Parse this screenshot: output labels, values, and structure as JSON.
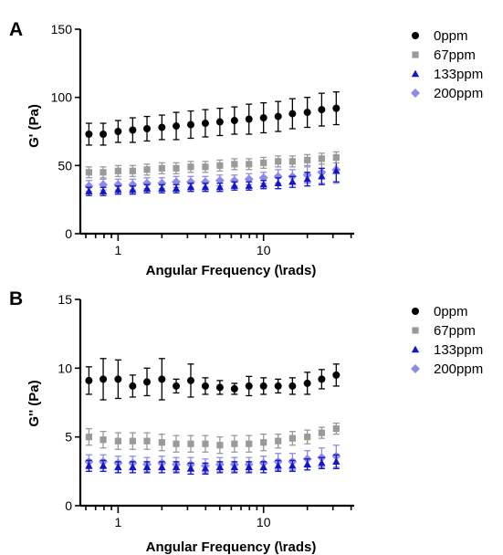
{
  "chart_data": [
    {
      "panel_label": "A",
      "type": "scatter",
      "xlabel": "Angular Frequency (\\rads)",
      "ylabel": "G' (Pa)",
      "x_scale": "log",
      "xlim": [
        0.55,
        42
      ],
      "ylim": [
        0,
        150
      ],
      "xticks_major": [
        1,
        10
      ],
      "xticks_major_labels": [
        "1",
        "10"
      ],
      "yticks": [
        0,
        50,
        100,
        150
      ],
      "ytick_labels": [
        "0",
        "50",
        "100",
        "150"
      ],
      "legend_position": "right",
      "x": [
        0.63,
        0.79,
        1.0,
        1.26,
        1.58,
        2.0,
        2.51,
        3.16,
        3.98,
        5.01,
        6.31,
        7.94,
        10.0,
        12.6,
        15.8,
        20.0,
        25.1,
        31.6
      ],
      "series": [
        {
          "name": "0ppm",
          "color": "#000000",
          "marker": "circle",
          "values": [
            73,
            73,
            75,
            76,
            77,
            78,
            79,
            80,
            81,
            82,
            83,
            84,
            85,
            86,
            88,
            89,
            91,
            92
          ],
          "errors": [
            8,
            8,
            8,
            9,
            9,
            9,
            10,
            10,
            10,
            10,
            10,
            11,
            11,
            11,
            11,
            11,
            12,
            12
          ]
        },
        {
          "name": "67ppm",
          "color": "#9a9a9a",
          "marker": "square",
          "values": [
            45,
            45,
            46,
            46,
            47,
            48,
            48,
            49,
            49,
            50,
            51,
            51,
            52,
            53,
            53,
            54,
            55,
            56
          ],
          "errors": [
            4,
            4,
            4,
            4,
            4,
            4,
            4,
            4,
            4,
            4,
            4,
            4,
            4,
            4,
            4,
            4,
            4,
            4
          ]
        },
        {
          "name": "133ppm",
          "color": "#1414cc",
          "marker": "triangle",
          "values": [
            31,
            31,
            32,
            32,
            33,
            33,
            33,
            34,
            34,
            34,
            35,
            35,
            36,
            37,
            38,
            40,
            42,
            46
          ],
          "errors": [
            3,
            3,
            3,
            3,
            3,
            3,
            3,
            3,
            3,
            3,
            3,
            3,
            3,
            4,
            4,
            5,
            6,
            8
          ]
        },
        {
          "name": "200ppm",
          "color": "#8c8ce6",
          "marker": "diamond",
          "values": [
            35,
            36,
            36,
            36,
            37,
            37,
            38,
            38,
            38,
            39,
            39,
            40,
            41,
            42,
            42,
            43,
            45,
            47
          ],
          "errors": [
            4,
            4,
            4,
            4,
            4,
            4,
            4,
            4,
            4,
            4,
            4,
            4,
            4,
            5,
            5,
            6,
            8,
            10
          ]
        }
      ]
    },
    {
      "panel_label": "B",
      "type": "scatter",
      "xlabel": "Angular Frequency (\\rads)",
      "ylabel": "G'' (Pa)",
      "x_scale": "log",
      "xlim": [
        0.55,
        42
      ],
      "ylim": [
        0,
        15
      ],
      "xticks_major": [
        1,
        10
      ],
      "xticks_major_labels": [
        "1",
        "10"
      ],
      "yticks": [
        0,
        5,
        10,
        15
      ],
      "ytick_labels": [
        "0",
        "5",
        "10",
        "15"
      ],
      "legend_position": "right",
      "x": [
        0.63,
        0.79,
        1.0,
        1.26,
        1.58,
        2.0,
        2.51,
        3.16,
        3.98,
        5.01,
        6.31,
        7.94,
        10.0,
        12.6,
        15.8,
        20.0,
        25.1,
        31.6
      ],
      "series": [
        {
          "name": "0ppm",
          "color": "#000000",
          "marker": "circle",
          "values": [
            9.1,
            9.2,
            9.2,
            8.7,
            9.0,
            9.2,
            8.7,
            9.1,
            8.7,
            8.6,
            8.5,
            8.7,
            8.7,
            8.7,
            8.7,
            8.9,
            9.2,
            9.5
          ],
          "errors": [
            1.0,
            1.5,
            1.4,
            0.8,
            1.0,
            1.5,
            0.5,
            1.2,
            0.6,
            0.5,
            0.4,
            0.7,
            0.6,
            0.5,
            0.6,
            0.8,
            0.7,
            0.8
          ]
        },
        {
          "name": "67ppm",
          "color": "#9a9a9a",
          "marker": "square",
          "values": [
            5.0,
            4.8,
            4.7,
            4.7,
            4.7,
            4.6,
            4.5,
            4.5,
            4.5,
            4.4,
            4.5,
            4.5,
            4.6,
            4.7,
            4.9,
            5.0,
            5.3,
            5.6
          ],
          "errors": [
            0.6,
            0.6,
            0.6,
            0.6,
            0.6,
            0.6,
            0.6,
            0.6,
            0.6,
            0.6,
            0.6,
            0.6,
            0.6,
            0.5,
            0.5,
            0.5,
            0.4,
            0.4
          ]
        },
        {
          "name": "133ppm",
          "color": "#1414cc",
          "marker": "triangle",
          "values": [
            2.9,
            2.9,
            2.8,
            2.8,
            2.8,
            2.8,
            2.8,
            2.7,
            2.7,
            2.8,
            2.8,
            2.8,
            2.8,
            2.9,
            2.9,
            3.0,
            3.1,
            3.2
          ],
          "errors": [
            0.4,
            0.4,
            0.4,
            0.4,
            0.4,
            0.4,
            0.4,
            0.4,
            0.4,
            0.4,
            0.4,
            0.4,
            0.4,
            0.4,
            0.4,
            0.4,
            0.4,
            0.5
          ]
        },
        {
          "name": "200ppm",
          "color": "#8c8ce6",
          "marker": "diamond",
          "values": [
            3.2,
            3.2,
            3.1,
            3.1,
            3.0,
            3.1,
            3.0,
            3.0,
            2.9,
            3.0,
            3.0,
            3.0,
            3.1,
            3.2,
            3.2,
            3.4,
            3.5,
            3.6
          ],
          "errors": [
            0.5,
            0.5,
            0.5,
            0.5,
            0.5,
            0.5,
            0.5,
            0.5,
            0.5,
            0.5,
            0.5,
            0.5,
            0.5,
            0.6,
            0.6,
            0.6,
            0.7,
            0.8
          ]
        }
      ]
    }
  ]
}
